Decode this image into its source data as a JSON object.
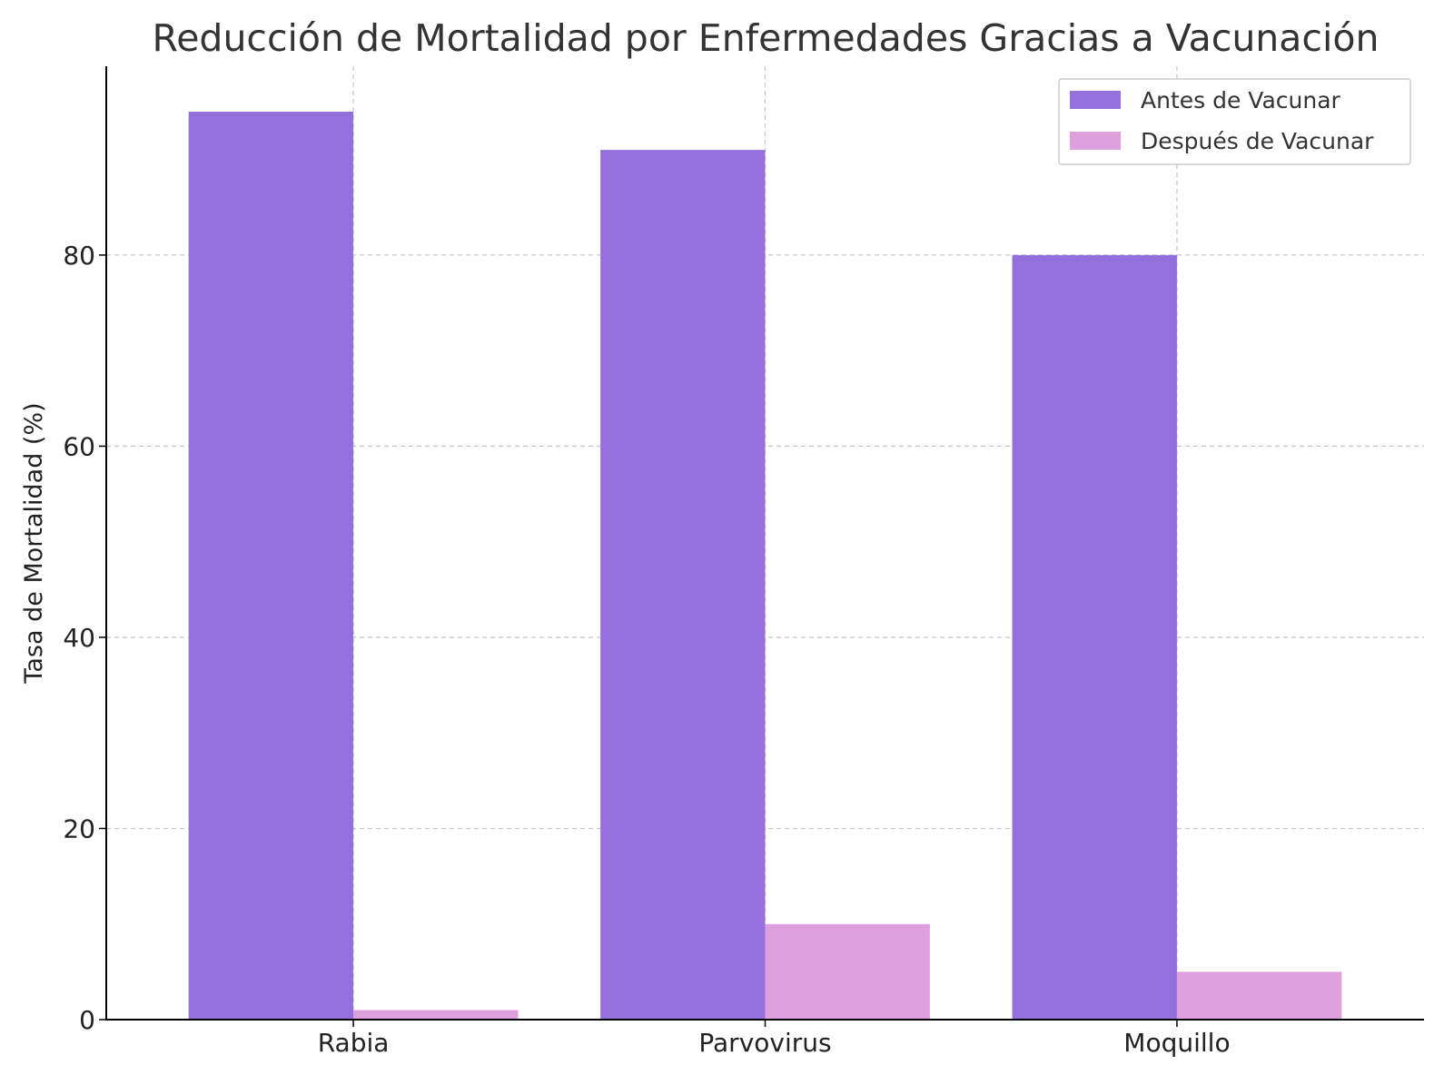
{
  "chart_data": {
    "type": "bar",
    "title": "Reducción de Mortalidad por Enfermedades Gracias a Vacunación",
    "xlabel": "",
    "ylabel": "Tasa de Mortalidad (%)",
    "categories": [
      "Rabia",
      "Parvovirus",
      "Moquillo"
    ],
    "series": [
      {
        "name": "Antes de Vacunar",
        "values": [
          95,
          91,
          80
        ],
        "color": "#9370db"
      },
      {
        "name": "Después de Vacunar",
        "values": [
          1,
          10,
          5
        ],
        "color": "#dda0dd"
      }
    ],
    "ylim": [
      0,
      99.75
    ],
    "yticks": [
      0,
      20,
      40,
      60,
      80
    ],
    "grid": true,
    "legend_position": "top-right"
  }
}
